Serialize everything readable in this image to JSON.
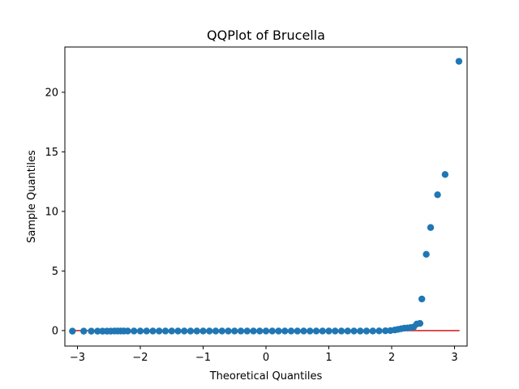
{
  "chart_data": {
    "type": "scatter",
    "title": "QQPlot of Brucella",
    "xlabel": "Theoretical Quantiles",
    "ylabel": "Sample Quantiles",
    "xlim": [
      -3.2,
      3.2
    ],
    "ylim": [
      -1.3,
      23.8
    ],
    "xticks": [
      -3,
      -2,
      -1,
      0,
      1,
      2,
      3
    ],
    "yticks": [
      0,
      5,
      10,
      15,
      20
    ],
    "grid": false,
    "point_color": "#1f77b4",
    "line_color": "#d62728",
    "reference_line": {
      "x": [
        -3.08,
        3.08
      ],
      "y": [
        0,
        0
      ]
    },
    "series": [
      {
        "points_x": [
          -3.08,
          -2.9,
          -2.78,
          -2.68,
          -2.6,
          -2.53,
          -2.47,
          -2.41,
          -2.36,
          -2.31,
          -2.26,
          -2.2,
          -2.1,
          -2.0,
          -1.9,
          -1.8,
          -1.7,
          -1.6,
          -1.5,
          -1.4,
          -1.3,
          -1.2,
          -1.1,
          -1.0,
          -0.9,
          -0.8,
          -0.7,
          -0.6,
          -0.5,
          -0.4,
          -0.3,
          -0.2,
          -0.1,
          0.0,
          0.1,
          0.2,
          0.3,
          0.4,
          0.5,
          0.6,
          0.7,
          0.8,
          0.9,
          1.0,
          1.1,
          1.2,
          1.3,
          1.4,
          1.5,
          1.6,
          1.7,
          1.8,
          1.9,
          1.98,
          2.05,
          2.1,
          2.15,
          2.2,
          2.25,
          2.3,
          2.35,
          2.4,
          2.45,
          2.48,
          2.55,
          2.62,
          2.73,
          2.85,
          3.07
        ],
        "points_y": [
          -0.05,
          -0.05,
          -0.05,
          -0.05,
          -0.05,
          -0.05,
          -0.05,
          -0.04,
          -0.04,
          -0.04,
          -0.04,
          -0.04,
          -0.04,
          -0.04,
          -0.04,
          -0.04,
          -0.04,
          -0.04,
          -0.04,
          -0.04,
          -0.04,
          -0.04,
          -0.04,
          -0.04,
          -0.04,
          -0.04,
          -0.04,
          -0.04,
          -0.04,
          -0.04,
          -0.04,
          -0.04,
          -0.04,
          -0.04,
          -0.04,
          -0.04,
          -0.04,
          -0.04,
          -0.04,
          -0.04,
          -0.04,
          -0.04,
          -0.04,
          -0.04,
          -0.04,
          -0.04,
          -0.04,
          -0.04,
          -0.04,
          -0.04,
          -0.04,
          -0.03,
          -0.02,
          0.0,
          0.05,
          0.1,
          0.15,
          0.2,
          0.22,
          0.25,
          0.3,
          0.55,
          0.6,
          2.65,
          6.4,
          8.65,
          11.4,
          13.1,
          22.6
        ]
      }
    ]
  }
}
